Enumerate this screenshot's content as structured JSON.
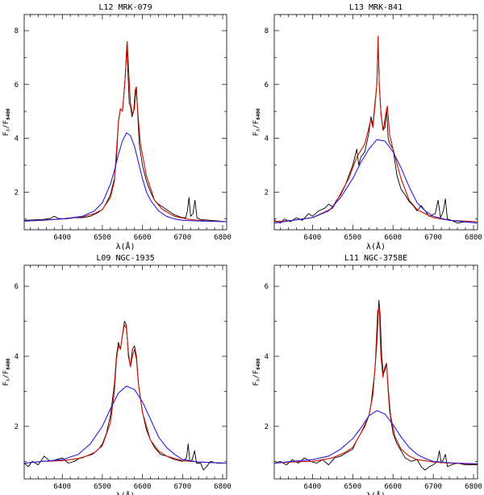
{
  "figure": {
    "ylabel_main": "F",
    "ylabel_sub1": "λ",
    "ylabel_sep": "/F",
    "ylabel_sub2": "6400",
    "xlabel": "λ(Å)"
  },
  "colors": {
    "observed": "#000000",
    "fit": "#cc1100",
    "broad": "#2a1ee0"
  },
  "chart_data": [
    {
      "type": "line",
      "title": "L12 MRK-079",
      "xlabel": "λ(Å)",
      "ylabel": "Fλ/F6400",
      "xlim": [
        6305,
        6810
      ],
      "ylim": [
        0.6,
        8.6
      ],
      "xticks": [
        6400,
        6500,
        6600,
        6700,
        6800
      ],
      "yticks": [
        2,
        4,
        6,
        8
      ],
      "series": [
        {
          "name": "observed",
          "color": "#000000",
          "x": [
            6305,
            6330,
            6350,
            6370,
            6380,
            6390,
            6410,
            6430,
            6450,
            6470,
            6490,
            6500,
            6510,
            6520,
            6530,
            6535,
            6540,
            6545,
            6550,
            6555,
            6558,
            6561,
            6564,
            6567,
            6570,
            6574,
            6578,
            6582,
            6585,
            6588,
            6592,
            6600,
            6610,
            6620,
            6630,
            6640,
            6650,
            6660,
            6680,
            6700,
            6708,
            6712,
            6716,
            6720,
            6726,
            6731,
            6736,
            6745,
            6770,
            6810
          ],
          "y": [
            0.95,
            0.97,
            0.98,
            1.02,
            1.1,
            1.02,
            1.0,
            1.05,
            1.05,
            1.1,
            1.25,
            1.35,
            1.6,
            1.9,
            2.5,
            3.2,
            4.6,
            5.1,
            5.0,
            5.9,
            6.5,
            7.5,
            6.4,
            5.3,
            5.2,
            4.8,
            5.0,
            5.8,
            5.9,
            4.9,
            3.8,
            3.0,
            2.4,
            2.0,
            1.7,
            1.55,
            1.45,
            1.35,
            1.15,
            1.05,
            1.05,
            1.3,
            1.8,
            1.1,
            1.2,
            1.7,
            1.05,
            0.98,
            0.95,
            0.9
          ]
        },
        {
          "name": "fit",
          "color": "#cc1100",
          "x": [
            6305,
            6350,
            6400,
            6450,
            6480,
            6500,
            6520,
            6530,
            6540,
            6545,
            6550,
            6555,
            6558,
            6562,
            6566,
            6570,
            6575,
            6580,
            6584,
            6588,
            6595,
            6610,
            6630,
            6650,
            6680,
            6710,
            6720,
            6735,
            6760,
            6810
          ],
          "y": [
            0.92,
            0.95,
            1.0,
            1.08,
            1.2,
            1.35,
            1.8,
            2.4,
            4.6,
            5.1,
            5.0,
            5.9,
            6.5,
            7.6,
            6.4,
            5.3,
            4.9,
            5.1,
            5.9,
            5.0,
            3.8,
            2.6,
            1.7,
            1.35,
            1.1,
            1.0,
            0.98,
            0.96,
            0.93,
            0.9
          ]
        },
        {
          "name": "broad",
          "color": "#2a1ee0",
          "x": [
            6305,
            6350,
            6400,
            6450,
            6480,
            6500,
            6520,
            6530,
            6540,
            6550,
            6560,
            6570,
            6580,
            6590,
            6600,
            6610,
            6620,
            6640,
            6660,
            6680,
            6700,
            6750,
            6810
          ],
          "y": [
            0.92,
            0.96,
            1.0,
            1.1,
            1.3,
            1.6,
            2.3,
            2.8,
            3.4,
            3.9,
            4.2,
            4.1,
            3.7,
            3.1,
            2.5,
            2.0,
            1.7,
            1.3,
            1.1,
            1.0,
            0.95,
            0.92,
            0.9
          ]
        }
      ]
    },
    {
      "type": "line",
      "title": "L13 MRK-841",
      "xlabel": "λ(Å)",
      "ylabel": "Fλ/F6400",
      "xlim": [
        6305,
        6810
      ],
      "ylim": [
        0.6,
        8.6
      ],
      "xticks": [
        6400,
        6500,
        6600,
        6700,
        6800
      ],
      "yticks": [
        2,
        4,
        6,
        8
      ],
      "series": [
        {
          "name": "observed",
          "color": "#000000",
          "x": [
            6305,
            6320,
            6330,
            6345,
            6360,
            6375,
            6390,
            6400,
            6415,
            6430,
            6440,
            6450,
            6460,
            6470,
            6480,
            6490,
            6500,
            6510,
            6515,
            6520,
            6530,
            6540,
            6545,
            6550,
            6555,
            6560,
            6563,
            6566,
            6570,
            6575,
            6580,
            6584,
            6588,
            6592,
            6600,
            6610,
            6620,
            6630,
            6640,
            6650,
            6660,
            6670,
            6690,
            6705,
            6712,
            6718,
            6725,
            6730,
            6735,
            6745,
            6760,
            6780,
            6810
          ],
          "y": [
            0.95,
            0.85,
            1.0,
            0.9,
            1.05,
            0.95,
            1.2,
            1.1,
            1.3,
            1.4,
            1.55,
            1.45,
            1.7,
            1.9,
            2.2,
            2.6,
            3.0,
            3.6,
            3.0,
            3.3,
            3.5,
            4.2,
            4.8,
            4.5,
            5.3,
            6.0,
            7.6,
            6.0,
            5.0,
            4.3,
            4.4,
            5.1,
            4.0,
            3.8,
            3.6,
            2.6,
            2.1,
            1.9,
            1.65,
            1.5,
            1.3,
            1.5,
            1.1,
            1.2,
            1.7,
            1.05,
            1.3,
            1.75,
            1.0,
            0.95,
            0.85,
            0.9,
            0.85
          ]
        },
        {
          "name": "fit",
          "color": "#cc1100",
          "x": [
            6305,
            6350,
            6400,
            6450,
            6490,
            6510,
            6530,
            6545,
            6550,
            6555,
            6560,
            6563,
            6566,
            6570,
            6576,
            6582,
            6586,
            6592,
            6600,
            6620,
            6640,
            6660,
            6700,
            6740,
            6810
          ],
          "y": [
            0.9,
            0.95,
            1.05,
            1.4,
            2.5,
            3.3,
            3.8,
            4.7,
            4.4,
            5.2,
            6.0,
            7.8,
            6.0,
            4.9,
            4.3,
            4.9,
            5.2,
            4.1,
            3.6,
            2.5,
            1.7,
            1.35,
            1.05,
            0.95,
            0.9
          ]
        },
        {
          "name": "broad",
          "color": "#2a1ee0",
          "x": [
            6305,
            6350,
            6400,
            6440,
            6470,
            6500,
            6520,
            6540,
            6560,
            6580,
            6600,
            6620,
            6640,
            6660,
            6680,
            6700,
            6740,
            6810
          ],
          "y": [
            0.85,
            0.95,
            1.05,
            1.3,
            1.8,
            2.5,
            3.1,
            3.6,
            3.95,
            3.9,
            3.5,
            2.9,
            2.2,
            1.6,
            1.3,
            1.1,
            0.95,
            0.85
          ]
        }
      ]
    },
    {
      "type": "line",
      "title": "L09 NGC-1935",
      "xlabel": "λ(Å)",
      "ylabel": "Fλ/F6400",
      "xlim": [
        6305,
        6810
      ],
      "ylim": [
        0.5,
        6.6
      ],
      "xticks": [
        6400,
        6500,
        6600,
        6700,
        6800
      ],
      "yticks": [
        2,
        4,
        6
      ],
      "series": [
        {
          "name": "observed",
          "color": "#000000",
          "x": [
            6305,
            6315,
            6325,
            6340,
            6355,
            6370,
            6385,
            6400,
            6415,
            6430,
            6445,
            6460,
            6475,
            6490,
            6500,
            6510,
            6520,
            6530,
            6535,
            6540,
            6545,
            6550,
            6555,
            6560,
            6565,
            6570,
            6575,
            6580,
            6585,
            6590,
            6600,
            6610,
            6620,
            6630,
            6645,
            6660,
            6680,
            6700,
            6710,
            6714,
            6718,
            6724,
            6730,
            6735,
            6745,
            6752,
            6760,
            6770,
            6785,
            6810
          ],
          "y": [
            0.95,
            0.85,
            1.0,
            0.9,
            1.15,
            1.0,
            1.05,
            1.1,
            0.95,
            1.0,
            1.1,
            1.15,
            1.2,
            1.35,
            1.5,
            1.8,
            2.3,
            3.2,
            4.0,
            4.4,
            4.2,
            4.6,
            5.0,
            4.9,
            4.0,
            3.7,
            4.2,
            4.3,
            4.0,
            3.2,
            2.4,
            1.9,
            1.6,
            1.4,
            1.2,
            1.15,
            1.05,
            1.0,
            1.1,
            1.5,
            1.0,
            1.05,
            1.3,
            0.95,
            0.95,
            0.75,
            0.85,
            1.0,
            0.95,
            0.95
          ]
        },
        {
          "name": "fit",
          "color": "#cc1100",
          "x": [
            6305,
            6350,
            6400,
            6450,
            6480,
            6500,
            6520,
            6530,
            6535,
            6540,
            6545,
            6550,
            6555,
            6560,
            6565,
            6570,
            6575,
            6580,
            6585,
            6590,
            6600,
            6620,
            6640,
            6660,
            6700,
            6740,
            6810
          ],
          "y": [
            0.95,
            1.0,
            1.02,
            1.1,
            1.25,
            1.45,
            2.1,
            3.0,
            3.9,
            4.3,
            4.2,
            4.6,
            4.9,
            4.8,
            4.1,
            3.7,
            4.0,
            4.2,
            3.9,
            3.2,
            2.4,
            1.6,
            1.3,
            1.15,
            1.02,
            0.98,
            0.95
          ]
        },
        {
          "name": "broad",
          "color": "#2a1ee0",
          "x": [
            6305,
            6350,
            6400,
            6440,
            6470,
            6500,
            6520,
            6540,
            6560,
            6580,
            6600,
            6620,
            6640,
            6660,
            6680,
            6700,
            6740,
            6810
          ],
          "y": [
            0.95,
            1.0,
            1.05,
            1.2,
            1.5,
            2.0,
            2.5,
            2.95,
            3.15,
            3.05,
            2.7,
            2.2,
            1.7,
            1.4,
            1.2,
            1.05,
            0.98,
            0.95
          ]
        }
      ]
    },
    {
      "type": "line",
      "title": "L11 NGC-3758E",
      "xlabel": "λ(Å)",
      "ylabel": "Fλ/F6400",
      "xlim": [
        6305,
        6810
      ],
      "ylim": [
        0.5,
        6.6
      ],
      "xticks": [
        6400,
        6500,
        6600,
        6700,
        6800
      ],
      "yticks": [
        2,
        4,
        6
      ],
      "series": [
        {
          "name": "observed",
          "color": "#000000",
          "x": [
            6305,
            6320,
            6335,
            6350,
            6365,
            6380,
            6395,
            6410,
            6425,
            6440,
            6455,
            6470,
            6485,
            6500,
            6510,
            6520,
            6530,
            6540,
            6545,
            6550,
            6555,
            6560,
            6565,
            6568,
            6572,
            6576,
            6580,
            6584,
            6588,
            6592,
            6600,
            6610,
            6620,
            6630,
            6645,
            6660,
            6670,
            6680,
            6690,
            6700,
            6710,
            6715,
            6720,
            6725,
            6730,
            6735,
            6745,
            6760,
            6780,
            6810
          ],
          "y": [
            0.95,
            1.0,
            0.9,
            1.05,
            0.95,
            1.1,
            1.0,
            0.95,
            1.05,
            0.9,
            1.1,
            1.15,
            1.25,
            1.35,
            1.6,
            1.8,
            2.0,
            2.3,
            2.6,
            3.1,
            3.6,
            4.4,
            5.6,
            5.2,
            4.0,
            3.5,
            3.6,
            3.8,
            3.0,
            2.4,
            1.8,
            1.5,
            1.3,
            1.1,
            1.0,
            1.05,
            0.85,
            0.75,
            0.85,
            0.9,
            1.0,
            1.3,
            0.95,
            1.05,
            1.2,
            0.85,
            0.9,
            0.95,
            0.9,
            0.9
          ]
        },
        {
          "name": "fit",
          "color": "#cc1100",
          "x": [
            6305,
            6350,
            6400,
            6450,
            6480,
            6500,
            6520,
            6540,
            6550,
            6556,
            6562,
            6566,
            6570,
            6575,
            6580,
            6584,
            6588,
            6594,
            6605,
            6620,
            6640,
            6660,
            6700,
            6740,
            6810
          ],
          "y": [
            0.95,
            0.98,
            1.0,
            1.1,
            1.25,
            1.4,
            1.8,
            2.3,
            2.9,
            3.8,
            5.3,
            5.4,
            4.0,
            3.4,
            3.7,
            3.8,
            3.1,
            2.3,
            1.7,
            1.35,
            1.15,
            1.05,
            0.98,
            0.95,
            0.92
          ]
        },
        {
          "name": "broad",
          "color": "#2a1ee0",
          "x": [
            6305,
            6350,
            6400,
            6440,
            6470,
            6500,
            6520,
            6540,
            6560,
            6580,
            6600,
            6620,
            6640,
            6660,
            6680,
            6700,
            6740,
            6810
          ],
          "y": [
            0.95,
            1.0,
            1.05,
            1.15,
            1.35,
            1.65,
            1.95,
            2.3,
            2.45,
            2.35,
            2.05,
            1.7,
            1.4,
            1.2,
            1.08,
            1.0,
            0.96,
            0.93
          ]
        }
      ]
    }
  ]
}
